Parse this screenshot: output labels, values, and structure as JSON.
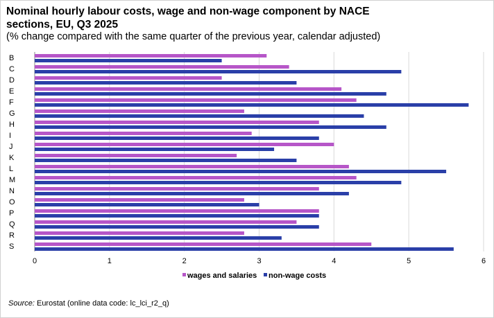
{
  "chart_data": {
    "type": "bar",
    "orientation": "horizontal",
    "title": "Nominal hourly labour costs, wage and non-wage component by NACE sections, EU, Q3 2025",
    "subtitle": "(% change compared with the same quarter of the previous year, calendar adjusted)",
    "categories": [
      "B",
      "C",
      "D",
      "E",
      "F",
      "G",
      "H",
      "I",
      "J",
      "K",
      "L",
      "M",
      "N",
      "O",
      "P",
      "Q",
      "R",
      "S"
    ],
    "series": [
      {
        "name": "wages and salaries",
        "color": "#b656c8",
        "values": [
          3.1,
          3.4,
          2.5,
          4.1,
          4.3,
          2.8,
          3.8,
          2.9,
          4.0,
          2.7,
          4.2,
          4.3,
          3.8,
          2.8,
          3.8,
          3.5,
          2.8,
          4.5
        ]
      },
      {
        "name": "non-wage costs",
        "color": "#2a3fa8",
        "values": [
          2.5,
          4.9,
          3.5,
          4.7,
          5.8,
          4.4,
          4.7,
          3.8,
          3.2,
          3.5,
          5.5,
          4.9,
          4.2,
          3.0,
          3.8,
          3.8,
          3.3,
          5.6
        ]
      }
    ],
    "xlim": [
      0,
      6
    ],
    "xticks": [
      "0",
      "1",
      "2",
      "3",
      "4",
      "5",
      "6"
    ],
    "grid": true,
    "legend": "bottom-center"
  },
  "source": {
    "label": "Source:",
    "text": " Eurostat (online data code: lc_lci_r2_q)"
  }
}
